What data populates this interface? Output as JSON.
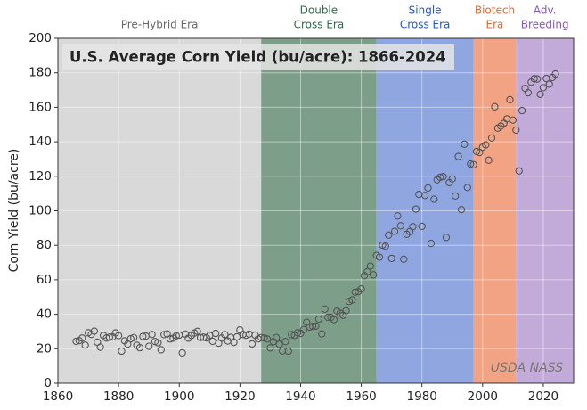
{
  "chart_data": {
    "type": "scatter",
    "title": "U.S. Average Corn Yield (bu/acre): 1866-2024",
    "y_label": "Corn Yield (bu/acre)",
    "annotation": "USDA NASS",
    "xlim": [
      1860,
      2030
    ],
    "ylim": [
      0,
      200
    ],
    "xticks": [
      1860,
      1880,
      1900,
      1920,
      1940,
      1960,
      1980,
      2000,
      2020
    ],
    "yticks": [
      0,
      20,
      40,
      60,
      80,
      100,
      120,
      140,
      160,
      180,
      200
    ],
    "grid": true,
    "marker_color": "#555555",
    "eras": [
      {
        "label": [
          "Pre-Hybrid Era"
        ],
        "start": 1860,
        "end": 1927,
        "color": "#d9d9d9",
        "text_color": "#666666"
      },
      {
        "label": [
          "Double",
          "Cross Era"
        ],
        "start": 1927,
        "end": 1965,
        "color": "#7d9f89",
        "text_color": "#2e6b4a"
      },
      {
        "label": [
          "Single",
          "Cross Era"
        ],
        "start": 1965,
        "end": 1997,
        "color": "#8fa6e0",
        "text_color": "#2255cc"
      },
      {
        "label": [
          "Biotech",
          "Era"
        ],
        "start": 1997,
        "end": 2011,
        "color": "#f2a384",
        "text_color": "#e06a30"
      },
      {
        "label": [
          "Adv.",
          "Breeding"
        ],
        "start": 2011,
        "end": 2030,
        "color": "#c3abd9",
        "text_color": "#8a55bb"
      }
    ],
    "x": [
      1866,
      1867,
      1868,
      1869,
      1870,
      1871,
      1872,
      1873,
      1874,
      1875,
      1876,
      1877,
      1878,
      1879,
      1880,
      1881,
      1882,
      1883,
      1884,
      1885,
      1886,
      1887,
      1888,
      1889,
      1890,
      1891,
      1892,
      1893,
      1894,
      1895,
      1896,
      1897,
      1898,
      1899,
      1900,
      1901,
      1902,
      1903,
      1904,
      1905,
      1906,
      1907,
      1908,
      1909,
      1910,
      1911,
      1912,
      1913,
      1914,
      1915,
      1916,
      1917,
      1918,
      1919,
      1920,
      1921,
      1922,
      1923,
      1924,
      1925,
      1926,
      1927,
      1928,
      1929,
      1930,
      1931,
      1932,
      1933,
      1934,
      1935,
      1936,
      1937,
      1938,
      1939,
      1940,
      1941,
      1942,
      1943,
      1944,
      1945,
      1946,
      1947,
      1948,
      1949,
      1950,
      1951,
      1952,
      1953,
      1954,
      1955,
      1956,
      1957,
      1958,
      1959,
      1960,
      1961,
      1962,
      1963,
      1964,
      1965,
      1966,
      1967,
      1968,
      1969,
      1970,
      1971,
      1972,
      1973,
      1974,
      1975,
      1976,
      1977,
      1978,
      1979,
      1980,
      1981,
      1982,
      1983,
      1984,
      1985,
      1986,
      1987,
      1988,
      1989,
      1990,
      1991,
      1992,
      1993,
      1994,
      1995,
      1996,
      1997,
      1998,
      1999,
      2000,
      2001,
      2002,
      2003,
      2004,
      2005,
      2006,
      2007,
      2008,
      2009,
      2010,
      2011,
      2012,
      2013,
      2014,
      2015,
      2016,
      2017,
      2018,
      2019,
      2020,
      2021,
      2022,
      2023,
      2024
    ],
    "values": [
      24.3,
      24.7,
      26.2,
      22.1,
      29.3,
      28.3,
      30.2,
      23.8,
      20.9,
      27.7,
      26.2,
      26.7,
      26.9,
      29.2,
      27.6,
      18.6,
      24.6,
      22.7,
      25.8,
      26.5,
      22,
      20.6,
      27.1,
      27.3,
      21.4,
      28.3,
      24.2,
      23.5,
      19.4,
      28.2,
      28.6,
      25.7,
      26.1,
      27.5,
      27.9,
      17.6,
      28.5,
      26.1,
      27.7,
      29.1,
      30.1,
      26.5,
      26.7,
      26.3,
      27.7,
      24.3,
      28.9,
      23.2,
      26.2,
      28.2,
      24.5,
      26.6,
      23.7,
      26.9,
      30.9,
      28.3,
      27.8,
      28.5,
      22.8,
      27.9,
      25.7,
      26.5,
      26.3,
      25.7,
      20.5,
      24.1,
      26.5,
      22.6,
      18.7,
      24.2,
      18.6,
      28.2,
      27.7,
      29.3,
      28.9,
      31.1,
      35.4,
      32.6,
      33,
      33.1,
      37.2,
      28.6,
      43,
      38.2,
      38.2,
      36.9,
      41.8,
      40.7,
      39.4,
      42,
      47.4,
      48.3,
      52.8,
      53.1,
      54.7,
      62.4,
      64.7,
      67.9,
      62.9,
      74.1,
      73.1,
      80.1,
      79.5,
      85.9,
      72.4,
      88.1,
      97,
      91.3,
      71.9,
      86.4,
      88,
      90.8,
      101,
      109.5,
      91,
      108.9,
      113.2,
      81.1,
      106.7,
      118,
      119.4,
      119.8,
      84.6,
      116.3,
      118.5,
      108.6,
      131.5,
      100.7,
      138.6,
      113.5,
      127.1,
      126.7,
      134.4,
      133.8,
      136.9,
      138.2,
      129.3,
      142.2,
      160.3,
      147.9,
      149.1,
      150.7,
      153.3,
      164.4,
      152.6,
      146.8,
      123.1,
      158.1,
      171,
      168.4,
      174.6,
      176.6,
      176.4,
      167.5,
      171.4,
      176.7,
      173.4,
      177.3,
      179.3
    ]
  }
}
